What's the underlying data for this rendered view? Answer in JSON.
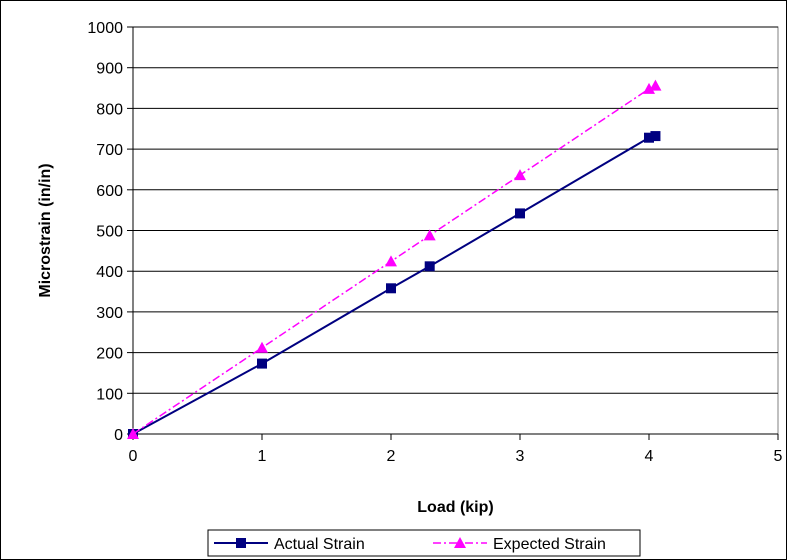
{
  "chart_data": {
    "type": "line",
    "title": "",
    "xlabel": "Load (kip)",
    "ylabel": "Microstrain (in/in)",
    "xlim": [
      0,
      5
    ],
    "ylim": [
      0,
      1000
    ],
    "x_ticks": [
      "0",
      "1",
      "2",
      "3",
      "4",
      "5"
    ],
    "y_ticks": [
      "0",
      "100",
      "200",
      "300",
      "400",
      "500",
      "600",
      "700",
      "800",
      "900",
      "1000"
    ],
    "grid": "horizontal",
    "legend_position": "bottom",
    "series": [
      {
        "name": "Actual Strain",
        "color": "#000080",
        "marker": "square",
        "line_style": "solid",
        "points": [
          [
            0,
            0
          ],
          [
            1,
            173
          ],
          [
            2,
            358
          ],
          [
            2.3,
            412
          ],
          [
            3,
            542
          ],
          [
            4,
            728
          ],
          [
            4.05,
            732
          ]
        ]
      },
      {
        "name": "Expected Strain",
        "color": "#ff00ff",
        "marker": "triangle",
        "line_style": "dash-dot",
        "points": [
          [
            0,
            0
          ],
          [
            1,
            212
          ],
          [
            2,
            424
          ],
          [
            2.3,
            488
          ],
          [
            3,
            636
          ],
          [
            4,
            848
          ],
          [
            4.05,
            856
          ]
        ]
      }
    ]
  }
}
